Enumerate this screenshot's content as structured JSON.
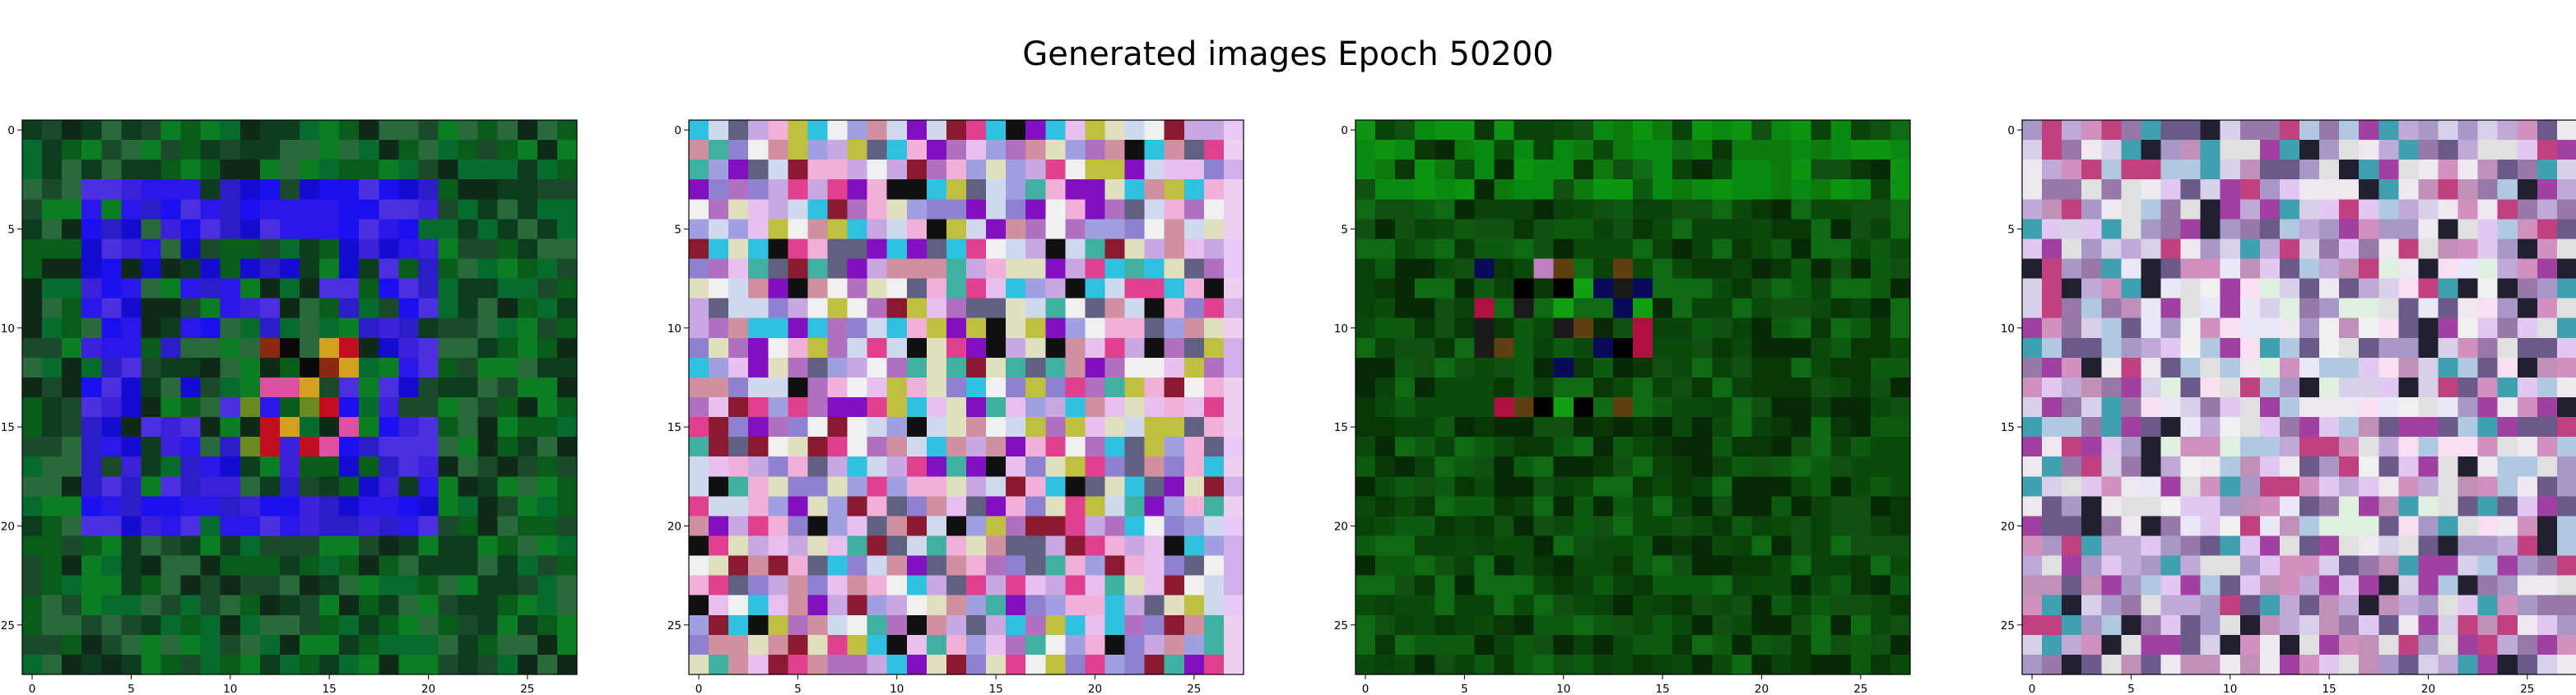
{
  "figure": {
    "suptitle": "Generated images Epoch 50200"
  },
  "chart_data": {
    "type": "heatmap",
    "title": "Generated images Epoch 50200",
    "panels": [
      {
        "type": "heatmap",
        "title": "",
        "grid_size": [
          28,
          28
        ],
        "xlabel": "",
        "ylabel": "",
        "xlim": [
          -0.5,
          27.5
        ],
        "ylim": [
          27.5,
          -0.5
        ],
        "xticks": [
          0,
          5,
          10,
          15,
          20,
          25
        ],
        "yticks": [
          0,
          5,
          10,
          15,
          20,
          25
        ],
        "palette": [
          "#0a5c1a",
          "#0c7d22",
          "#066b2c",
          "#1a4a2a",
          "#0d3d1e",
          "#2a6a3a",
          "#0f2a18"
        ],
        "motif": {
          "type": "square-ring",
          "inner": [
            3,
            20
          ],
          "outer": [
            4,
            19
          ],
          "palette": [
            "#1a10f0",
            "#2a18e8",
            "#3b22d8",
            "#150ccf",
            "#4a30e0",
            "#2d1dc8"
          ]
        },
        "center_blob": {
          "rows": [
            11,
            16
          ],
          "cols": [
            11,
            16
          ],
          "palette": [
            "#c01020",
            "#d3a020",
            "#e050a0",
            "#8a2a10",
            "#6a8a20",
            "#0a0a0a"
          ]
        }
      },
      {
        "type": "heatmap",
        "title": "",
        "grid_size": [
          28,
          28
        ],
        "xlabel": "",
        "ylabel": "",
        "xlim": [
          -0.5,
          27.5
        ],
        "ylim": [
          27.5,
          -0.5
        ],
        "xticks": [
          0,
          5,
          10,
          15,
          20,
          25
        ],
        "yticks": [
          0,
          5,
          10,
          15,
          20,
          25
        ],
        "palette": [
          "#c8a8e0",
          "#e8c0f0",
          "#a0a0e0",
          "#d0d8f0",
          "#f0b0d8",
          "#b070c0",
          "#e0e0c0",
          "#9080d0",
          "#d090a0",
          "#40b0a0",
          "#e04090",
          "#8010c0",
          "#f0f0f0",
          "#606080",
          "#c0c040",
          "#30c0e0",
          "#8a1a30",
          "#101010"
        ],
        "right_column_palette": [
          "#f0d0f0",
          "#e8c8f8",
          "#d0b0e8"
        ]
      },
      {
        "type": "heatmap",
        "title": "",
        "grid_size": [
          28,
          28
        ],
        "xlabel": "",
        "ylabel": "",
        "xlim": [
          -0.5,
          27.5
        ],
        "ylim": [
          27.5,
          -0.5
        ],
        "xticks": [
          0,
          5,
          10,
          15,
          20,
          25
        ],
        "yticks": [
          0,
          5,
          10,
          15,
          20,
          25
        ],
        "palette": [
          "#0a4a0a",
          "#0d5a10",
          "#083808",
          "#0f6a14",
          "#062a06",
          "#105010",
          "#0b420b"
        ],
        "top_palette": [
          "#0a8a10",
          "#0c7a0e",
          "#0e9412"
        ],
        "center_blob": {
          "rows": [
            7,
            14
          ],
          "cols": [
            6,
            14
          ],
          "palette": [
            "#000000",
            "#b01040",
            "#10a010",
            "#c080c0",
            "#0a0a5a",
            "#604010",
            "#1a1a1a"
          ]
        }
      },
      {
        "type": "heatmap",
        "title": "",
        "grid_size": [
          28,
          28
        ],
        "xlabel": "",
        "ylabel": "",
        "xlim": [
          -0.5,
          27.5
        ],
        "ylim": [
          27.5,
          -0.5
        ],
        "xticks": [
          0,
          5,
          10,
          15,
          20,
          25
        ],
        "yticks": [
          0,
          5,
          10,
          15,
          20,
          25
        ],
        "palette": [
          "#c0a8d8",
          "#e0c8f0",
          "#a898c8",
          "#d8d0e8",
          "#c090b8",
          "#9878a8",
          "#f0e8f0",
          "#b0c8e0",
          "#d090c0",
          "#6a5a8a",
          "#c04080",
          "#40a0b0",
          "#202030",
          "#e0e0e0",
          "#a040a0"
        ],
        "center_palette": [
          "#f0f0f0",
          "#e8e8f8",
          "#f8e0f0",
          "#e0f0e0"
        ]
      }
    ]
  }
}
